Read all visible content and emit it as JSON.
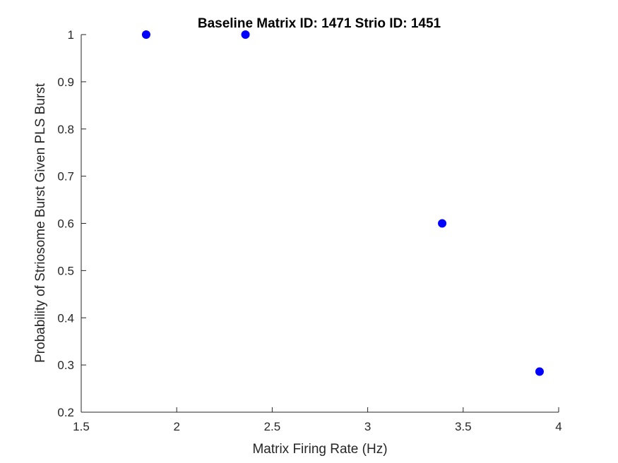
{
  "chart_data": {
    "type": "scatter",
    "title": "Baseline Matrix ID: 1471 Strio ID: 1451",
    "xlabel": "Matrix Firing Rate (Hz)",
    "ylabel": "Probability of Striosome Burst Given PLS Burst",
    "xlim": [
      1.5,
      4
    ],
    "ylim": [
      0.2,
      1
    ],
    "xticks": [
      "1.5",
      "2",
      "2.5",
      "3",
      "3.5",
      "4"
    ],
    "yticks": [
      "0.2",
      "0.3",
      "0.4",
      "0.5",
      "0.6",
      "0.7",
      "0.8",
      "0.9",
      "1"
    ],
    "grid": false,
    "series": [
      {
        "marker": "filled-circle",
        "color": "#0000ff",
        "points": [
          {
            "x": 1.84,
            "y": 1.0
          },
          {
            "x": 2.36,
            "y": 1.0
          },
          {
            "x": 3.39,
            "y": 0.6
          },
          {
            "x": 3.9,
            "y": 0.286
          }
        ]
      }
    ]
  }
}
